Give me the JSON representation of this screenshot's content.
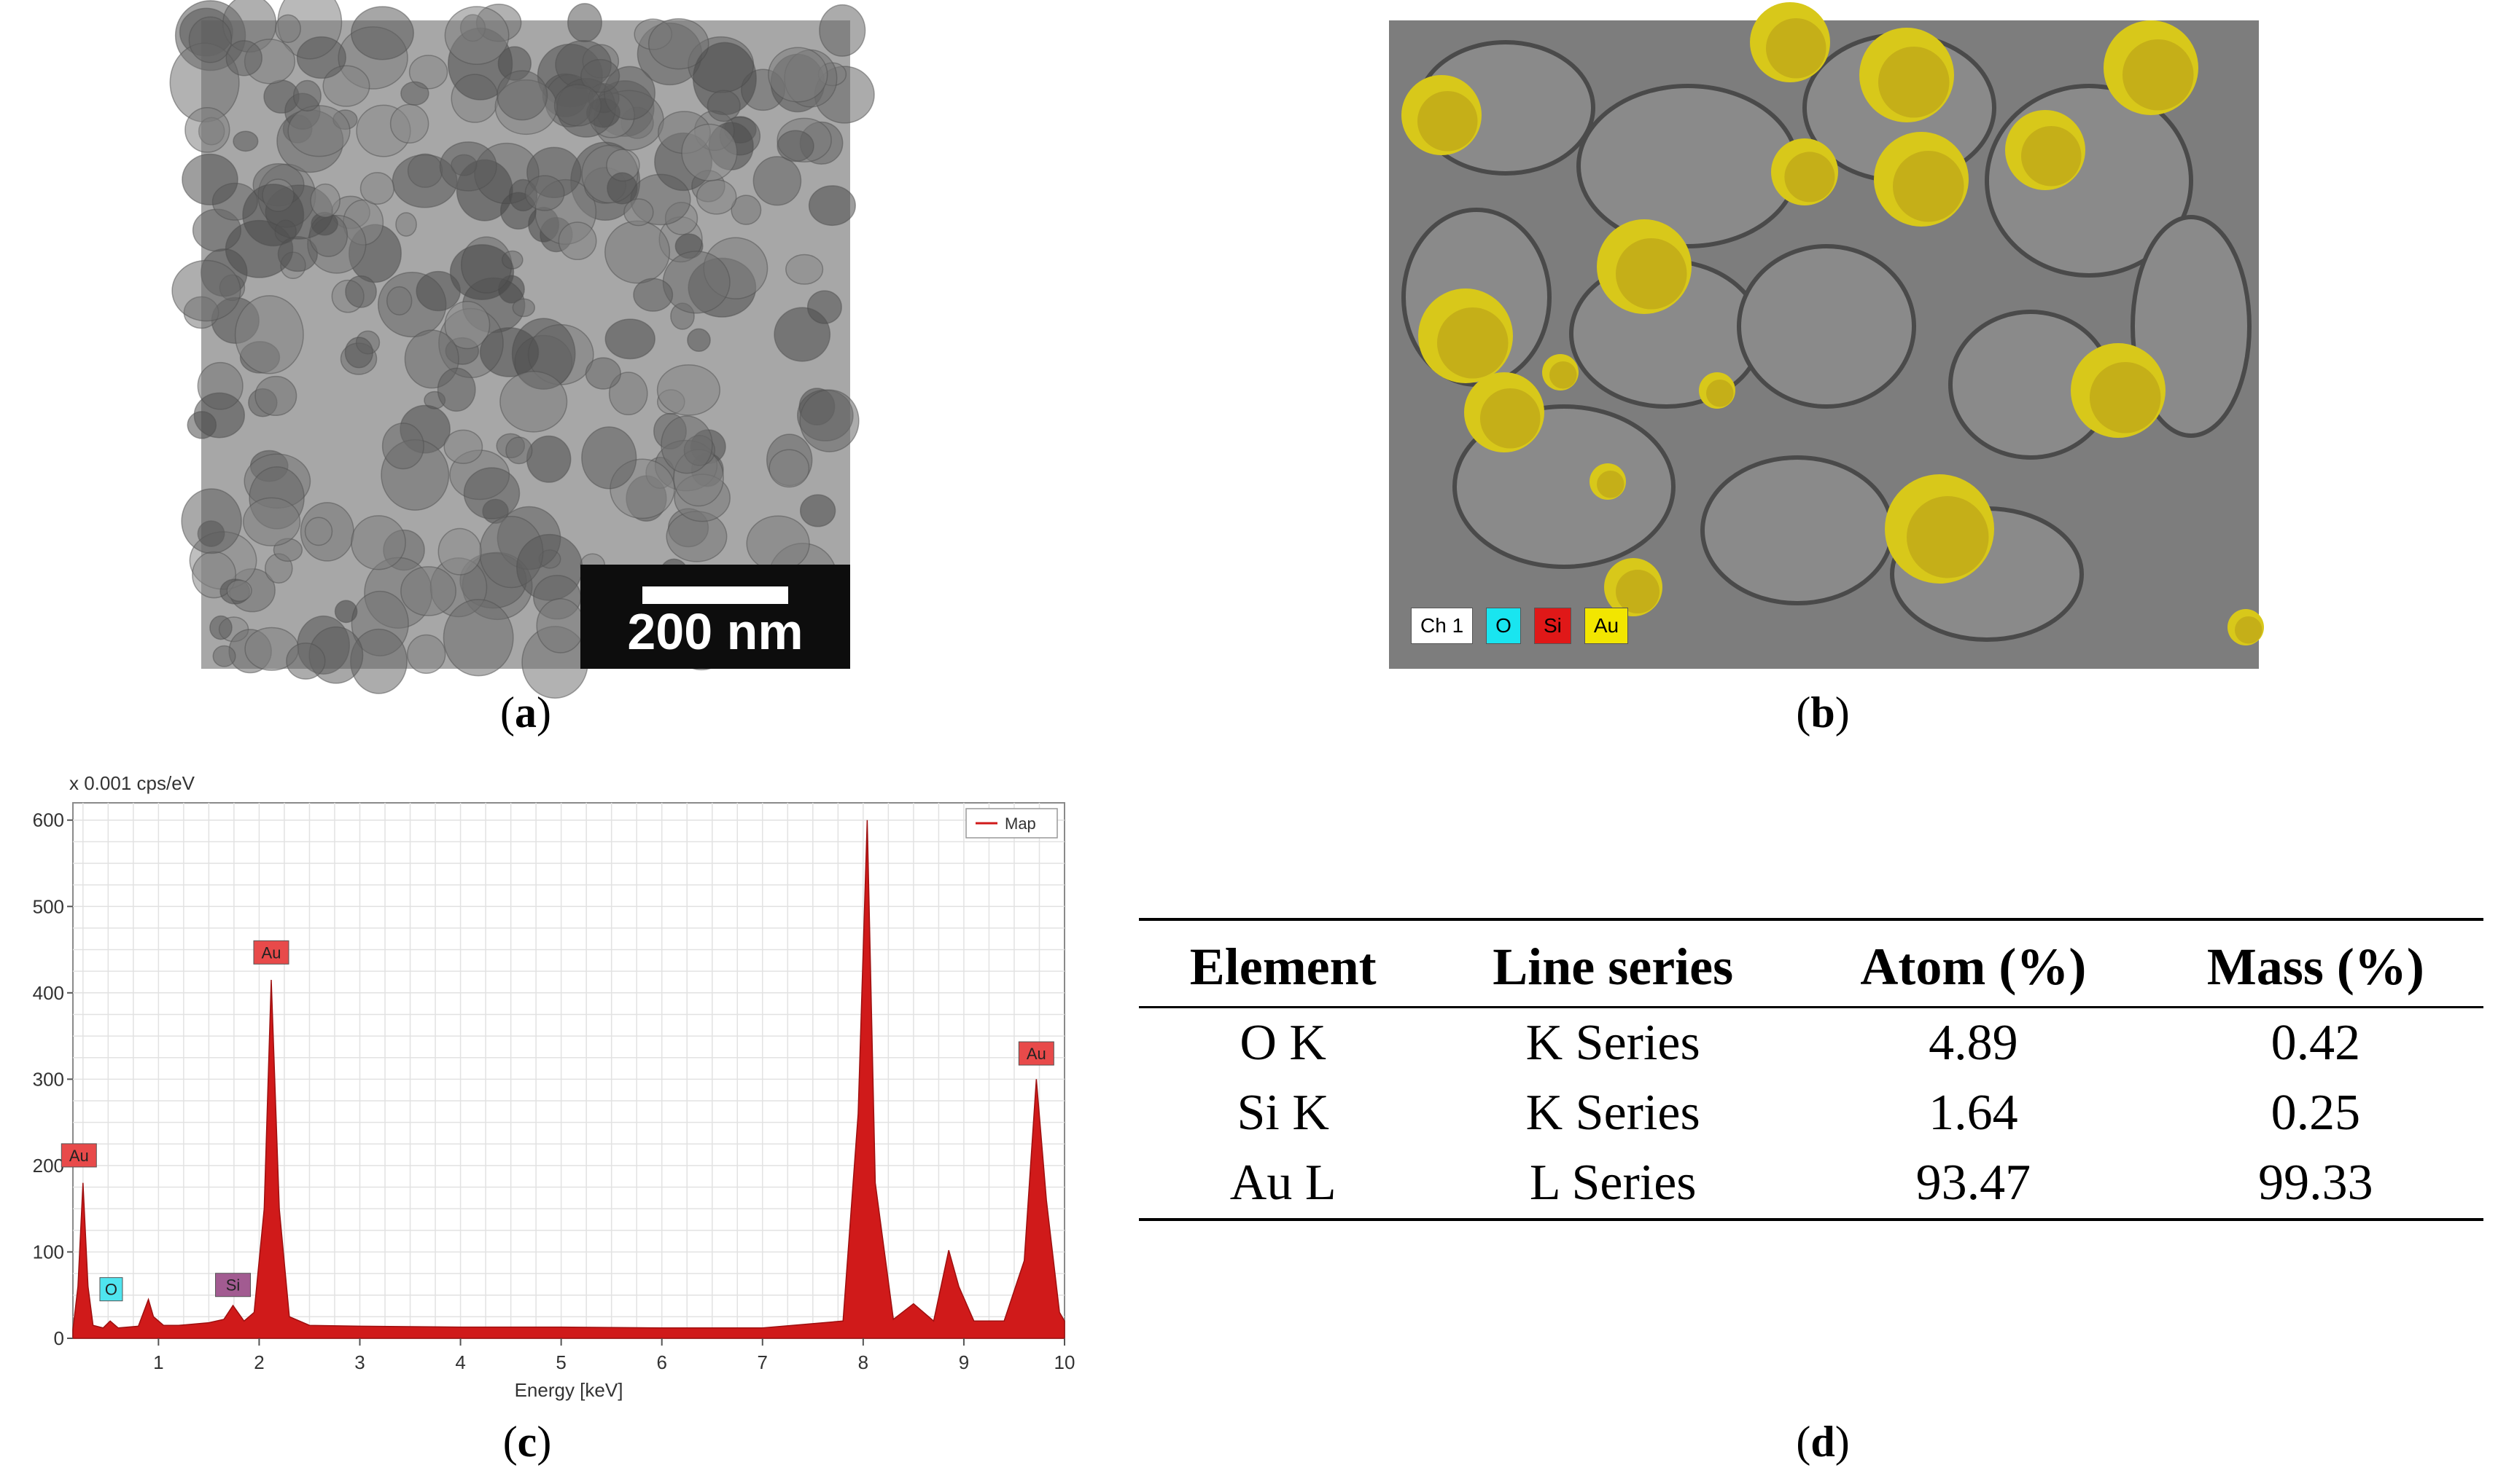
{
  "captions": {
    "a": "a",
    "b": "b",
    "c": "c",
    "d": "d"
  },
  "panel_a": {
    "scale_label": "200 nm"
  },
  "panel_b": {
    "legend": [
      {
        "label": "Ch 1",
        "color": "#ffffff",
        "text_color": "#000000"
      },
      {
        "label": "O",
        "color": "#19e5f0",
        "text_color": "#000000"
      },
      {
        "label": "Si",
        "color": "#e01818",
        "text_color": "#000000"
      },
      {
        "label": "Au",
        "color": "#f2e600",
        "text_color": "#000000"
      }
    ]
  },
  "chart_data": {
    "type": "area",
    "title": "",
    "unit_label": "x 0.001 cps/eV",
    "xlabel": "Energy [keV]",
    "ylabel": "",
    "xlim": [
      0.15,
      10
    ],
    "ylim": [
      0,
      620
    ],
    "xticks": [
      1,
      2,
      3,
      4,
      5,
      6,
      7,
      8,
      9,
      10
    ],
    "yticks": [
      0,
      100,
      200,
      300,
      400,
      500,
      600
    ],
    "grid": true,
    "legend_position": "top-right",
    "series": [
      {
        "name": "Map",
        "color": "#d01a1a",
        "x": [
          0.15,
          0.2,
          0.25,
          0.3,
          0.35,
          0.45,
          0.52,
          0.6,
          0.8,
          0.9,
          0.95,
          1.05,
          1.2,
          1.5,
          1.65,
          1.74,
          1.85,
          1.95,
          2.05,
          2.12,
          2.2,
          2.3,
          2.5,
          3.0,
          4.0,
          5.0,
          6.0,
          7.0,
          7.8,
          7.95,
          8.04,
          8.12,
          8.3,
          8.5,
          8.7,
          8.85,
          8.95,
          9.1,
          9.4,
          9.6,
          9.72,
          9.82,
          9.95,
          10.0
        ],
        "y": [
          10,
          60,
          180,
          60,
          15,
          12,
          20,
          12,
          14,
          45,
          25,
          15,
          15,
          18,
          22,
          38,
          20,
          30,
          150,
          415,
          150,
          25,
          15,
          14,
          13,
          13,
          12,
          12,
          20,
          260,
          600,
          180,
          22,
          40,
          20,
          102,
          60,
          20,
          20,
          90,
          300,
          160,
          30,
          20
        ]
      }
    ],
    "annotations": [
      {
        "label": "Au",
        "x": 0.21,
        "y": 200,
        "color": "#e84a4a"
      },
      {
        "label": "O",
        "x": 0.53,
        "y": 45,
        "color": "#4fe5ef"
      },
      {
        "label": "Si",
        "x": 1.74,
        "y": 50,
        "color": "#a25b91"
      },
      {
        "label": "Au",
        "x": 2.12,
        "y": 435,
        "color": "#e84a4a"
      },
      {
        "label": "Au",
        "x": 9.72,
        "y": 318,
        "color": "#e84a4a"
      }
    ]
  },
  "table_d": {
    "headers": [
      "Element",
      "Line series",
      "Atom (%)",
      "Mass (%)"
    ],
    "rows": [
      [
        "O K",
        "K Series",
        "4.89",
        "0.42"
      ],
      [
        "Si K",
        "K Series",
        "1.64",
        "0.25"
      ],
      [
        "Au L",
        "L Series",
        "93.47",
        "99.33"
      ]
    ]
  }
}
